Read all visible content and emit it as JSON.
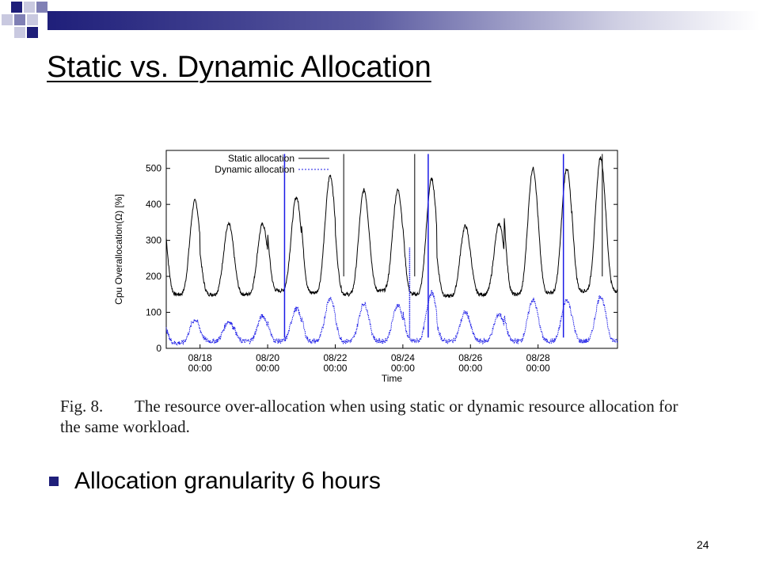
{
  "slide": {
    "title": "Static vs. Dynamic Allocation",
    "bullet": "Allocation granularity 6 hours",
    "page_number": "24",
    "accent_color": "#1f1f7a"
  },
  "figure": {
    "caption_number": "Fig. 8.",
    "caption_text": "The resource over-allocation when using static or dynamic resource allocation for the same workload."
  },
  "chart_data": {
    "type": "line",
    "ylabel": "Cpu Overallocation(Ω) [%]",
    "xlabel": "Time",
    "ylim": [
      0,
      550
    ],
    "xlim": [
      0,
      13.35
    ],
    "x_ticks": [
      {
        "day": 1.0,
        "label1": "08/18",
        "label2": "00:00"
      },
      {
        "day": 3.0,
        "label1": "08/20",
        "label2": "00:00"
      },
      {
        "day": 5.0,
        "label1": "08/22",
        "label2": "00:00"
      },
      {
        "day": 7.0,
        "label1": "08/24",
        "label2": "00:00"
      },
      {
        "day": 9.0,
        "label1": "08/26",
        "label2": "00:00"
      },
      {
        "day": 11.0,
        "label1": "08/28",
        "label2": "00:00"
      }
    ],
    "y_ticks": [
      0,
      100,
      200,
      300,
      400,
      500
    ],
    "legend_position": "top-left",
    "series": [
      {
        "name": "Static allocation",
        "color": "#000000",
        "style": "solid",
        "daily_peaks": [
          410,
          345,
          345,
          420,
          480,
          440,
          440,
          470,
          340,
          345,
          500,
          500,
          530
        ],
        "daily_troughs": [
          150,
          150,
          150,
          160,
          155,
          150,
          160,
          150,
          145,
          150,
          150,
          155,
          160
        ],
        "spikes": [
          {
            "day": 5.25,
            "value": 540
          },
          {
            "day": 7.35,
            "value": 540
          },
          {
            "day": 12.9,
            "value": 540
          }
        ]
      },
      {
        "name": "Dynamic allocation",
        "color": "#1a1ae6",
        "style": "dotted",
        "daily_peaks": [
          80,
          75,
          90,
          110,
          140,
          125,
          120,
          155,
          100,
          95,
          135,
          135,
          145
        ],
        "daily_troughs": [
          15,
          20,
          20,
          20,
          20,
          20,
          20,
          20,
          20,
          20,
          20,
          20,
          20
        ],
        "spikes": [
          {
            "day": 3.5,
            "value": 540
          },
          {
            "day": 7.2,
            "value": 280
          },
          {
            "day": 7.75,
            "value": 540
          },
          {
            "day": 11.75,
            "value": 540
          }
        ]
      }
    ]
  }
}
